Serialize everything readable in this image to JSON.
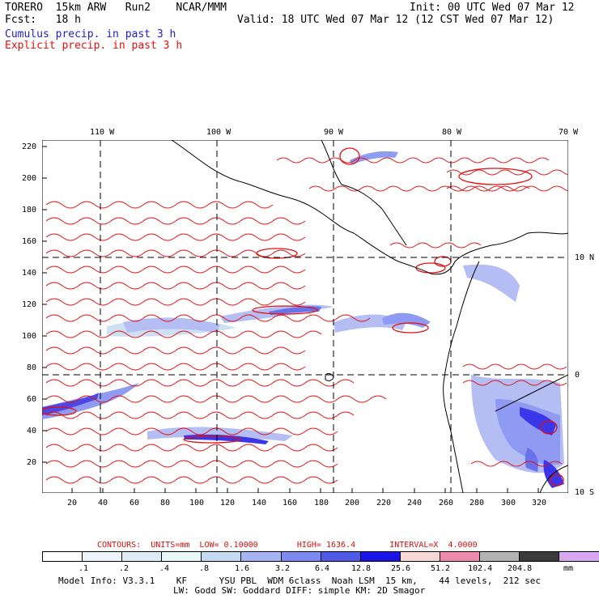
{
  "header": {
    "title": "TORERO  15km ARW   Run2    NCAR/MMM",
    "fcst": "Fcst:   18 h",
    "init": "Init: 00 UTC Wed 07 Mar 12",
    "valid": "Valid: 18 UTC Wed 07 Mar 12 (12 CST Wed 07 Mar 12)",
    "legend_cumulus": "Cumulus precip. in past 3 h",
    "legend_explicit": "Explicit precip. in past 3 h"
  },
  "colors": {
    "cumulus": "#2020c0",
    "explicit": "#e01010",
    "coast": "#000000"
  },
  "axes": {
    "lon_labels": [
      "110 W",
      "100 W",
      "90 W",
      "80 W",
      "70 W"
    ],
    "lat_labels": [
      "10 N",
      "0",
      "10 S"
    ],
    "y_ticks": [
      "220",
      "200",
      "180",
      "160",
      "140",
      "120",
      "100",
      "80",
      "60",
      "40",
      "20"
    ],
    "x_ticks": [
      "20",
      "40",
      "60",
      "80",
      "100",
      "120",
      "140",
      "160",
      "180",
      "200",
      "220",
      "240",
      "260",
      "280",
      "300",
      "320"
    ]
  },
  "footer": {
    "contours": "CONTOURS:  UNITS=mm  LOW= 0.10000        HIGH= 1636.4       INTERVAL=X  4.0000",
    "colorbar_colors": [
      "#ffffff",
      "#eef4fb",
      "#dfeaf7",
      "#e8f8f6",
      "#c5daf2",
      "#a7b3f2",
      "#7c8af0",
      "#4f5ae6",
      "#1a14e6",
      "#f8d7d7",
      "#f08bb0",
      "#b3b3b3",
      "#3a3a3a",
      "#d8a8f0"
    ],
    "colorbar_labels": [
      ".1",
      ".2",
      ".4",
      ".8",
      "1.6",
      "3.2",
      "6.4",
      "12.8",
      "25.6",
      "51.2",
      "102.4",
      "204.8"
    ],
    "units": "mm",
    "model_info_1": "Model Info: V3.3.1    KF      YSU PBL  WDM 6class  Noah LSM  15 km,    44 levels,  212 sec",
    "model_info_2": "LW: Godd SW: Goddard DIFF: simple KM: 2D Smagor"
  }
}
